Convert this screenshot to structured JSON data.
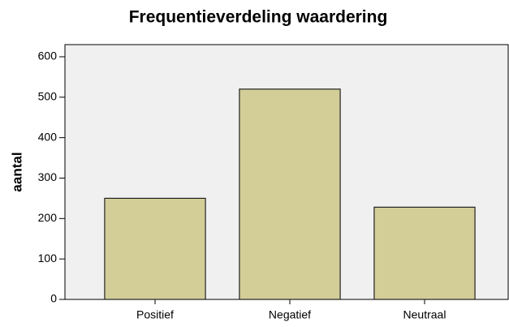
{
  "chart_data": {
    "type": "bar",
    "title": "Frequentieverdeling waardering",
    "y_label": "aantal",
    "categories": [
      "Positief",
      "Negatief",
      "Neutraal"
    ],
    "values": [
      250,
      520,
      228
    ],
    "color": "#d3ce98",
    "ylim": [
      0,
      630
    ],
    "yticks": [
      0,
      100,
      200,
      300,
      400,
      500,
      600
    ],
    "grid": false
  }
}
